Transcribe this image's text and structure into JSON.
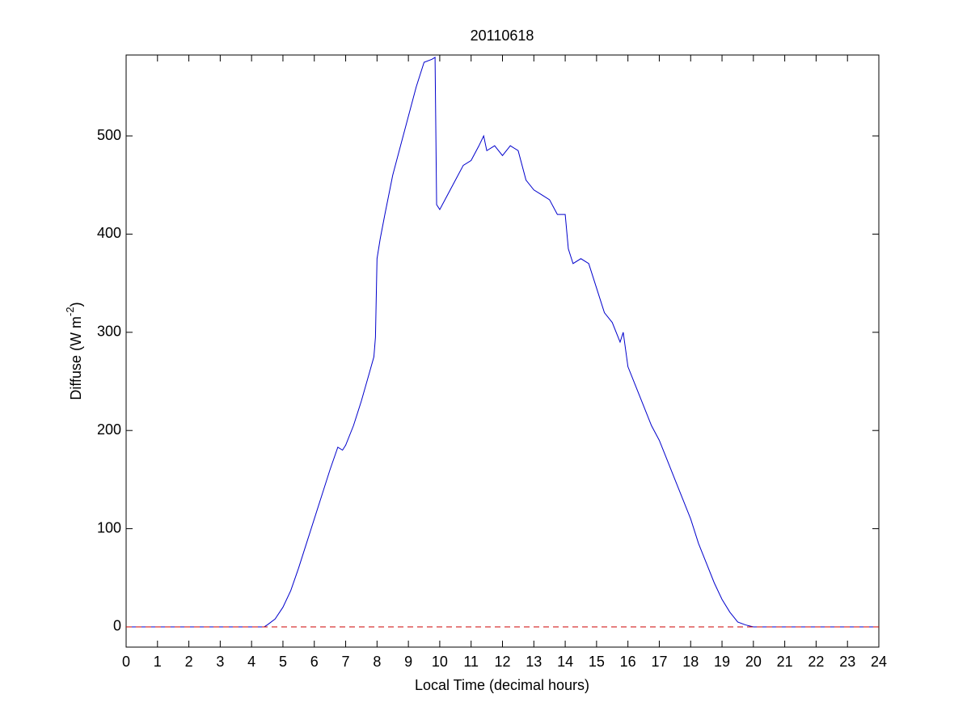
{
  "chart_data": {
    "type": "line",
    "title": "20110618",
    "xlabel": "Local Time (decimal hours)",
    "ylabel": {
      "text": "Diffuse (W m",
      "sup": "-2",
      "tail": ")"
    },
    "xlim": [
      0,
      24
    ],
    "ylim": [
      -20.6,
      582.4
    ],
    "xticks": [
      0,
      1,
      2,
      3,
      4,
      5,
      6,
      7,
      8,
      9,
      10,
      11,
      12,
      13,
      14,
      15,
      16,
      17,
      18,
      19,
      20,
      21,
      22,
      23,
      24
    ],
    "yticks": [
      0,
      100,
      200,
      300,
      400,
      500
    ],
    "grid": false,
    "series": [
      {
        "color": "#0000cc",
        "dash": false,
        "x": [
          0,
          1,
          2,
          3,
          4,
          4.4,
          4.5,
          4.75,
          5,
          5.25,
          5.5,
          5.75,
          6,
          6.25,
          6.5,
          6.75,
          6.9,
          7,
          7.25,
          7.5,
          7.75,
          7.9,
          7.95,
          8,
          8.1,
          8.25,
          8.5,
          8.75,
          9,
          9.25,
          9.5,
          9.75,
          9.85,
          9.9,
          10,
          10.25,
          10.5,
          10.75,
          11,
          11.25,
          11.4,
          11.5,
          11.75,
          12,
          12.25,
          12.5,
          12.75,
          13,
          13.25,
          13.5,
          13.75,
          14,
          14.1,
          14.25,
          14.5,
          14.75,
          15,
          15.25,
          15.5,
          15.75,
          15.85,
          16,
          16.25,
          16.5,
          16.75,
          17,
          17.25,
          17.5,
          17.75,
          18,
          18.25,
          18.5,
          18.75,
          19,
          19.25,
          19.5,
          19.75,
          20,
          21,
          22,
          23,
          24
        ],
        "values": [
          0,
          0,
          0,
          0,
          0,
          0,
          2,
          8,
          20,
          37,
          60,
          85,
          110,
          135,
          160,
          183,
          180,
          185,
          205,
          230,
          258,
          275,
          295,
          375,
          395,
          420,
          460,
          490,
          520,
          550,
          575,
          578,
          580,
          430,
          425,
          440,
          455,
          470,
          475,
          490,
          500,
          485,
          490,
          480,
          490,
          485,
          455,
          445,
          440,
          435,
          420,
          420,
          385,
          370,
          375,
          370,
          345,
          320,
          310,
          290,
          300,
          265,
          245,
          225,
          205,
          190,
          170,
          150,
          130,
          110,
          85,
          65,
          45,
          28,
          15,
          5,
          2,
          0,
          0,
          0,
          0,
          0
        ]
      },
      {
        "color": "#cc0000",
        "dash": true,
        "x": [
          0,
          24
        ],
        "values": [
          0,
          0
        ]
      }
    ]
  }
}
